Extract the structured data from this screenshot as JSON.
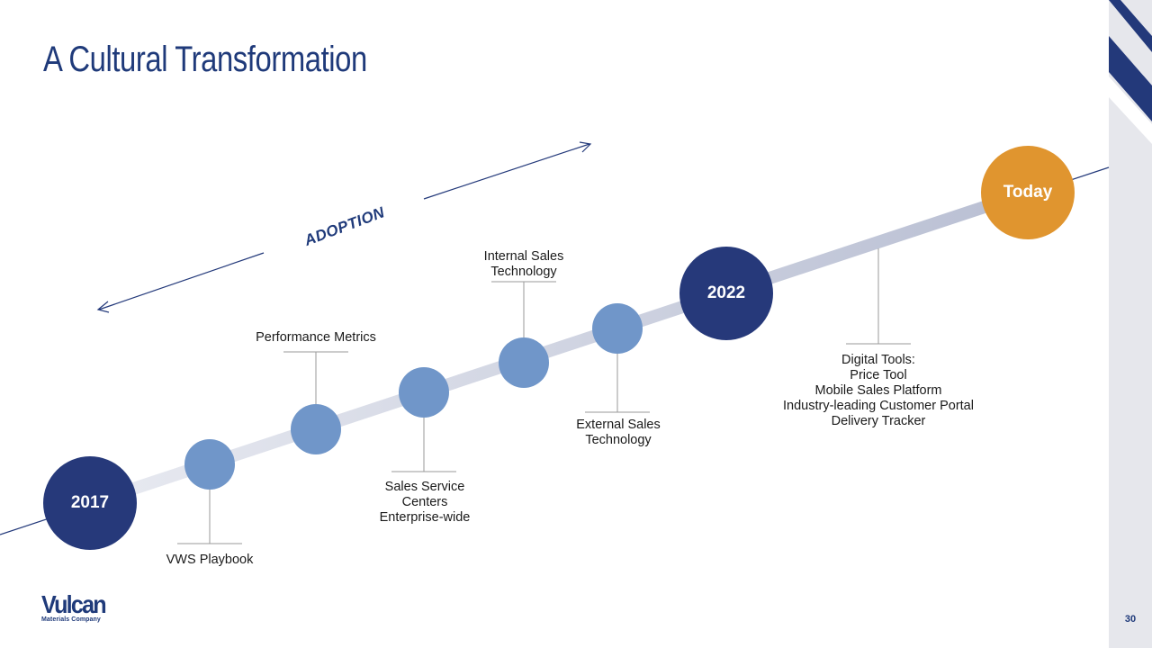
{
  "slide": {
    "title": "A Cultural Transformation",
    "page_number": "30"
  },
  "timeline": {
    "direction_label": "ADOPTION",
    "milestones": {
      "start": "2017",
      "mid": "2022",
      "end": "Today"
    },
    "events": [
      "VWS Playbook",
      "Performance Metrics",
      "Sales Service\nCenters\nEnterprise-wide",
      "Internal Sales\nTechnology",
      "External Sales\nTechnology",
      "Digital Tools:\nPrice Tool\nMobile Sales Platform\nIndustry-leading Customer Portal\nDelivery Tracker"
    ]
  },
  "logo": {
    "name": "Vulcan",
    "subtitle": "Materials Company"
  },
  "colors": {
    "title": "#1f3a7a",
    "milestone_dark": "#26397a",
    "event_node": "#7096c9",
    "today": "#e0952f",
    "band": "#c2c7d8",
    "side_panel": "#e6e7ec"
  }
}
